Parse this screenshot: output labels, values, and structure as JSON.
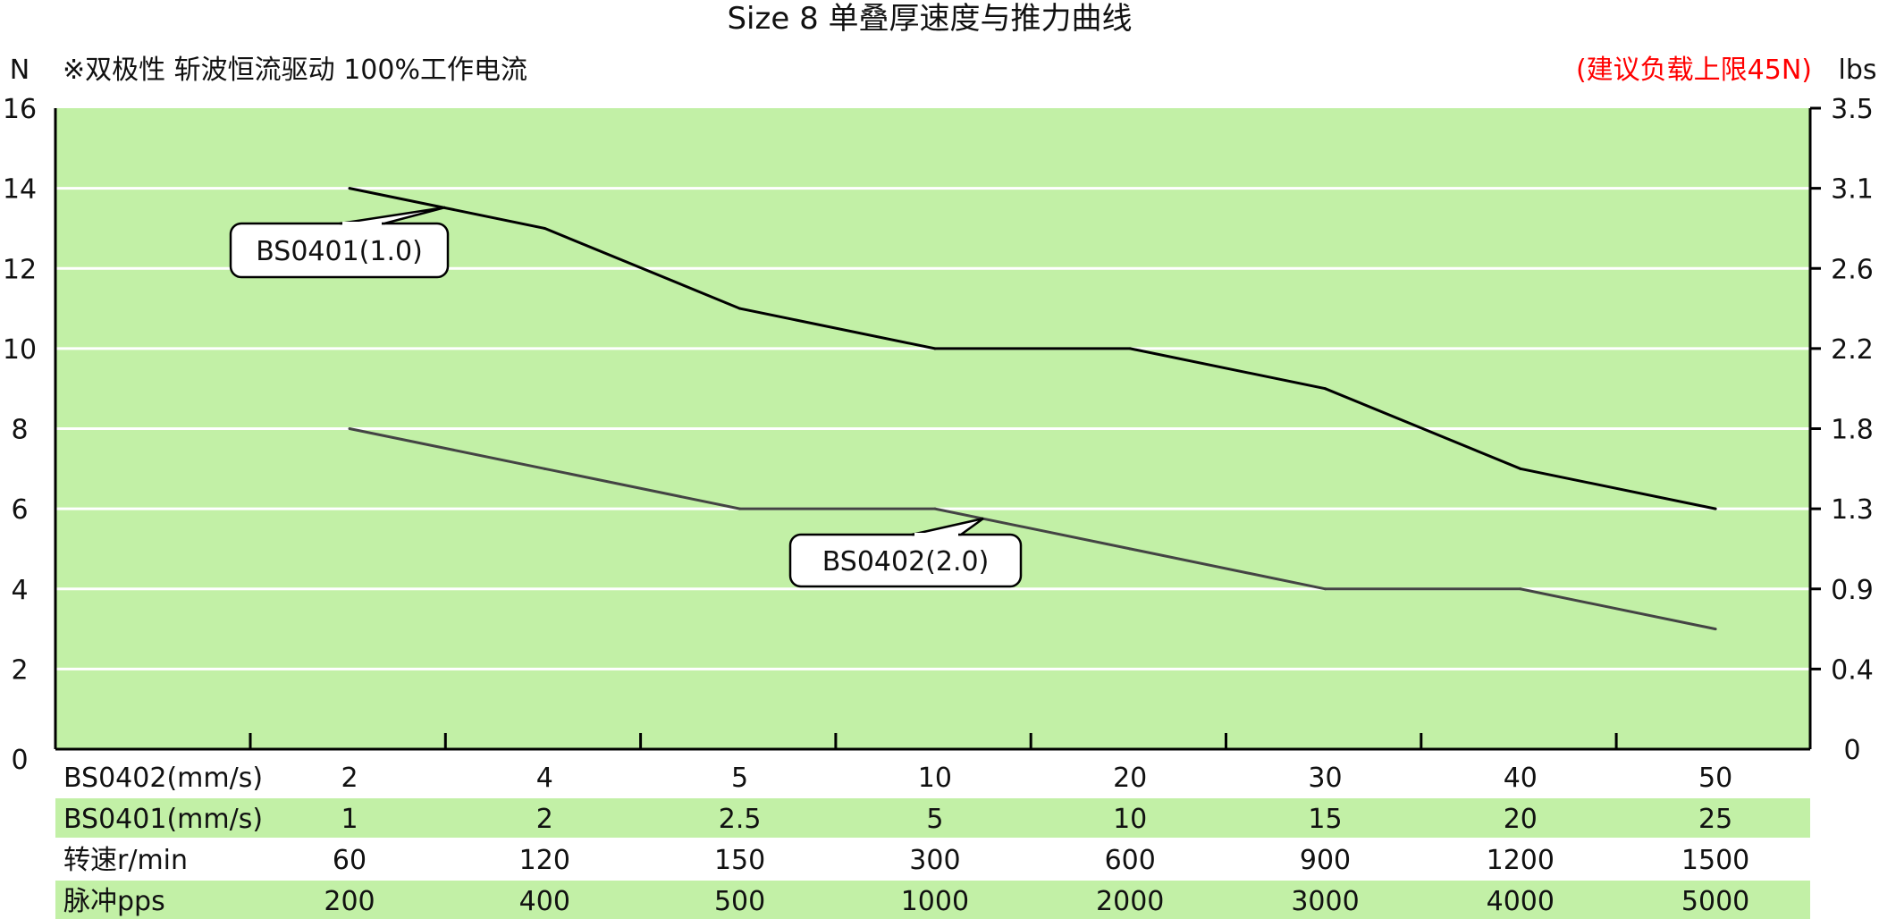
{
  "chart_data": {
    "type": "line",
    "title": "Size 8 单叠厚速度与推力曲线",
    "subtitle": "※双极性 斩波恒流驱动 100%工作电流",
    "note": "(建议负载上限45N)",
    "note_color": "#ff0000",
    "plot_background": "#c2f0a6",
    "grid": true,
    "y_left": {
      "unit": "N",
      "range": [
        0,
        16
      ],
      "ticks": [
        "0",
        "2",
        "4",
        "6",
        "8",
        "10",
        "12",
        "14",
        "16"
      ]
    },
    "y_right": {
      "unit": "lbs",
      "ticks": [
        "0",
        "0.4",
        "0.9",
        "1.3",
        "1.8",
        "2.2",
        "2.6",
        "3.1",
        "3.5"
      ]
    },
    "x_points": 8,
    "series": [
      {
        "name": "BS0401(1.0)",
        "color": "#000000",
        "values": [
          14,
          13,
          11,
          10,
          10,
          9,
          7,
          6
        ]
      },
      {
        "name": "BS0402(2.0)",
        "color": "#444444",
        "values": [
          8,
          7,
          6,
          6,
          5,
          4,
          4,
          3
        ]
      }
    ],
    "table": [
      {
        "label": "BS0402(mm/s)",
        "shaded": false,
        "values": [
          "2",
          "4",
          "5",
          "10",
          "20",
          "30",
          "40",
          "50"
        ]
      },
      {
        "label": "BS0401(mm/s)",
        "shaded": true,
        "values": [
          "1",
          "2",
          "2.5",
          "5",
          "10",
          "15",
          "20",
          "25"
        ]
      },
      {
        "label": "转速r/min",
        "shaded": false,
        "values": [
          "60",
          "120",
          "150",
          "300",
          "600",
          "900",
          "1200",
          "1500"
        ]
      },
      {
        "label": "脉冲pps",
        "shaded": true,
        "values": [
          "200",
          "400",
          "500",
          "1000",
          "2000",
          "3000",
          "4000",
          "5000"
        ]
      }
    ]
  }
}
